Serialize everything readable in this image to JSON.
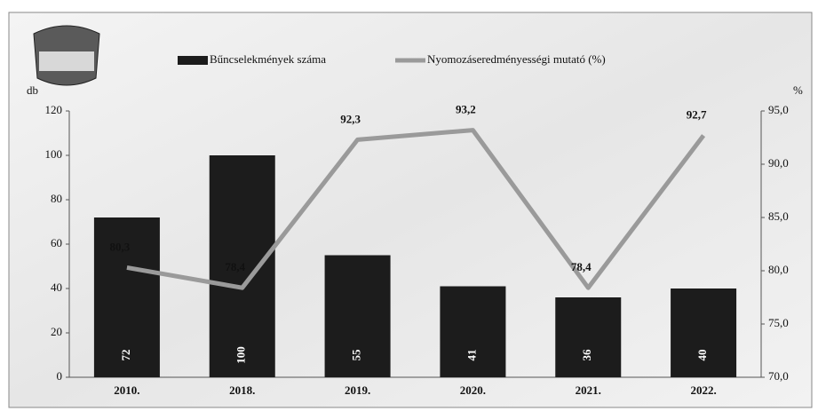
{
  "chart_data": {
    "type": "combo",
    "categories": [
      "2010.",
      "2018.",
      "2019.",
      "2020.",
      "2021.",
      "2022."
    ],
    "series": [
      {
        "name": "Bűncselekmények száma",
        "type": "bar",
        "color": "#1c1c1c",
        "values": [
          72,
          100,
          55,
          41,
          36,
          40
        ]
      },
      {
        "name": "Nyomozáseredményességi mutató (%)",
        "type": "line",
        "axis": "y2",
        "color": "#9a9a9a",
        "values": [
          80.3,
          78.4,
          92.3,
          93.2,
          78.4,
          92.7
        ],
        "value_labels": [
          "80,3",
          "78,4",
          "92,3",
          "93,2",
          "78,4",
          "92,7"
        ]
      }
    ],
    "ylabel": "db",
    "y2label": "%",
    "ylim": [
      0,
      120
    ],
    "yticks": [
      0,
      20,
      40,
      60,
      80,
      100,
      120
    ],
    "y2lim": [
      70,
      95
    ],
    "y2ticks": [
      {
        "value": 70,
        "label": "70,0"
      },
      {
        "value": 75,
        "label": "75,0"
      },
      {
        "value": 80,
        "label": "80,0"
      },
      {
        "value": 85,
        "label": "85,0"
      },
      {
        "value": 90,
        "label": "90,0"
      },
      {
        "value": 95,
        "label": "95,0"
      }
    ],
    "grid": false,
    "legend": "top"
  }
}
